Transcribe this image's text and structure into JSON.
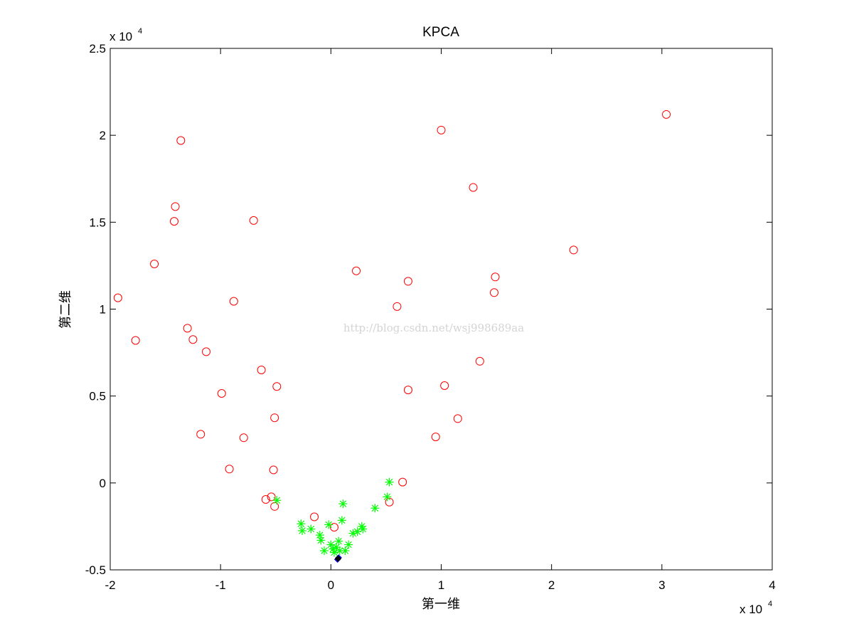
{
  "chart_data": {
    "type": "scatter",
    "title": "KPCA",
    "xlabel": "第一维",
    "ylabel": "第二维",
    "x_multiplier": "x 10",
    "x_multiplier_exp": "4",
    "y_multiplier": "x 10",
    "y_multiplier_exp": "4",
    "xlim": [
      -2,
      4
    ],
    "ylim": [
      -0.5,
      2.5
    ],
    "xticks": [
      -2,
      -1,
      0,
      1,
      2,
      3,
      4
    ],
    "yticks": [
      -0.5,
      0,
      0.5,
      1,
      1.5,
      2,
      2.5
    ],
    "xtick_labels": [
      "-2",
      "-1",
      "0",
      "1",
      "2",
      "3",
      "4"
    ],
    "ytick_labels": [
      "-0.5",
      "0",
      "0.5",
      "1",
      "1.5",
      "2",
      "2.5"
    ],
    "grid": false,
    "watermark": "http://blog.csdn.net/wsj998689aa",
    "series": [
      {
        "marker": "circle",
        "color": "#ff0000",
        "points": [
          [
            -1.93,
            1.065
          ],
          [
            -1.77,
            0.82
          ],
          [
            -1.6,
            1.26
          ],
          [
            -1.42,
            1.505
          ],
          [
            -1.41,
            1.59
          ],
          [
            -1.36,
            1.97
          ],
          [
            -1.3,
            0.89
          ],
          [
            -1.25,
            0.825
          ],
          [
            -1.18,
            0.28
          ],
          [
            -1.13,
            0.755
          ],
          [
            -0.99,
            0.515
          ],
          [
            -0.92,
            0.08
          ],
          [
            -0.88,
            1.045
          ],
          [
            -0.79,
            0.26
          ],
          [
            -0.7,
            1.51
          ],
          [
            -0.63,
            0.65
          ],
          [
            -0.59,
            -0.095
          ],
          [
            -0.54,
            -0.08
          ],
          [
            -0.52,
            0.075
          ],
          [
            -0.51,
            0.375
          ],
          [
            -0.51,
            -0.135
          ],
          [
            -0.49,
            0.555
          ],
          [
            -0.15,
            -0.195
          ],
          [
            0.03,
            -0.255
          ],
          [
            0.23,
            1.22
          ],
          [
            0.53,
            -0.11
          ],
          [
            0.6,
            1.015
          ],
          [
            0.65,
            0.005
          ],
          [
            0.7,
            0.535
          ],
          [
            0.7,
            1.16
          ],
          [
            0.95,
            0.265
          ],
          [
            1.0,
            2.03
          ],
          [
            1.03,
            0.56
          ],
          [
            1.15,
            0.37
          ],
          [
            1.29,
            1.7
          ],
          [
            1.35,
            0.7
          ],
          [
            1.48,
            1.095
          ],
          [
            1.49,
            1.185
          ],
          [
            2.2,
            1.34
          ],
          [
            3.04,
            2.12
          ]
        ]
      },
      {
        "marker": "asterisk",
        "color": "#00ff00",
        "points": [
          [
            -0.49,
            -0.1
          ],
          [
            -0.27,
            -0.235
          ],
          [
            -0.26,
            -0.275
          ],
          [
            -0.18,
            -0.265
          ],
          [
            -0.1,
            -0.3
          ],
          [
            -0.09,
            -0.33
          ],
          [
            -0.06,
            -0.39
          ],
          [
            -0.02,
            -0.24
          ],
          [
            0.0,
            -0.355
          ],
          [
            0.02,
            -0.38
          ],
          [
            0.03,
            -0.4
          ],
          [
            0.05,
            -0.37
          ],
          [
            0.07,
            -0.335
          ],
          [
            0.08,
            -0.39
          ],
          [
            0.1,
            -0.215
          ],
          [
            0.11,
            -0.12
          ],
          [
            0.13,
            -0.39
          ],
          [
            0.16,
            -0.355
          ],
          [
            0.2,
            -0.29
          ],
          [
            0.24,
            -0.28
          ],
          [
            0.28,
            -0.25
          ],
          [
            0.29,
            -0.265
          ],
          [
            0.4,
            -0.145
          ],
          [
            0.51,
            -0.08
          ],
          [
            0.53,
            0.005
          ]
        ]
      },
      {
        "marker": "diamond",
        "color": "#0000ff",
        "points": [
          [
            0.06,
            -0.44
          ],
          [
            0.07,
            -0.43
          ]
        ]
      },
      {
        "marker": "diamond",
        "color": "#000000",
        "points": [
          [
            0.065,
            -0.435
          ]
        ]
      }
    ]
  }
}
